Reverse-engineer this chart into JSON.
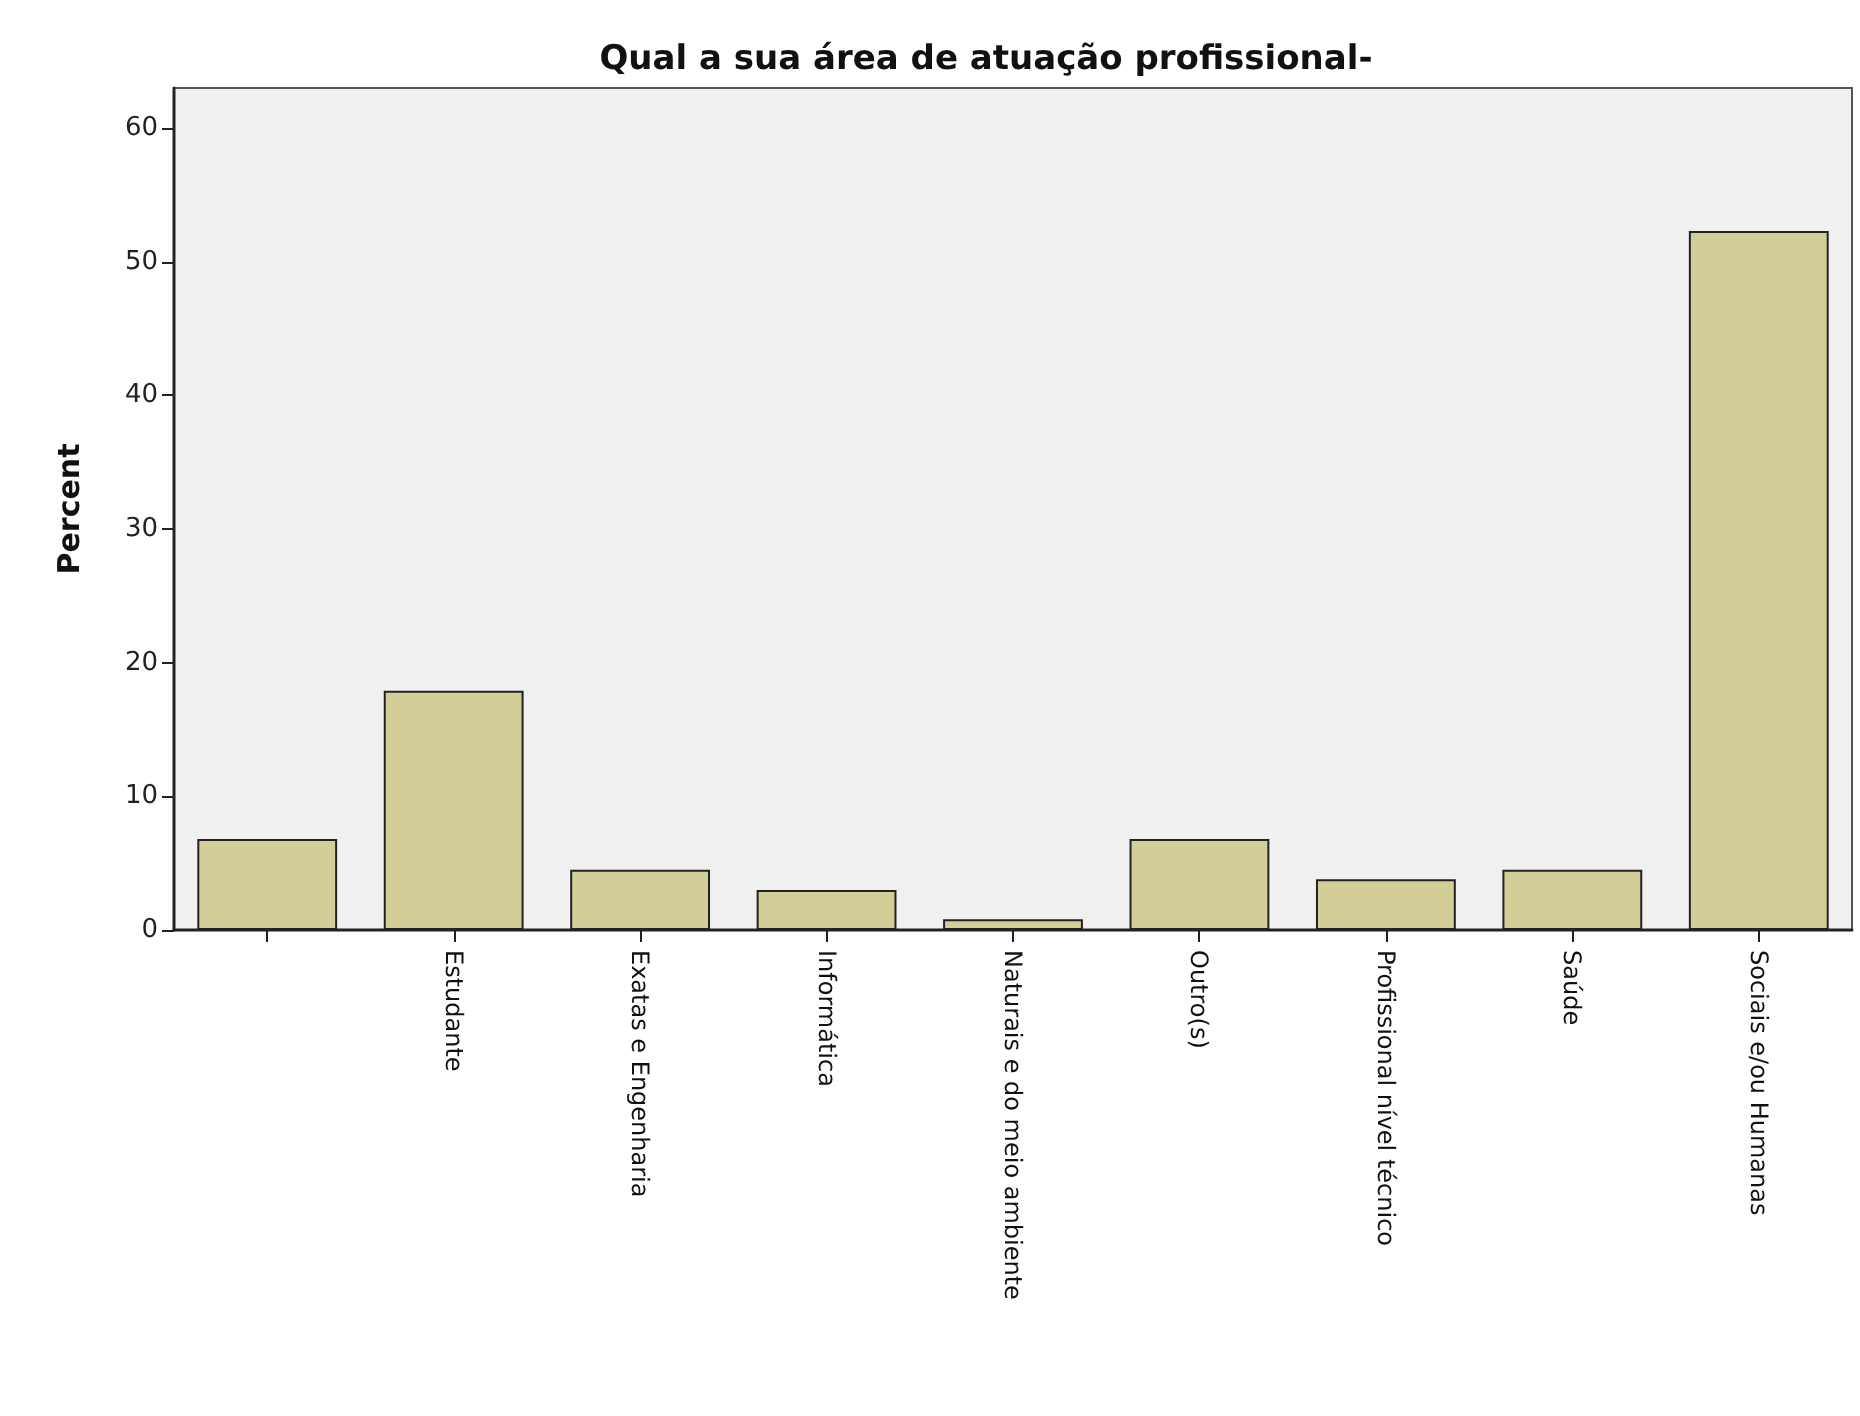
{
  "chart_data": {
    "type": "bar",
    "title": "Qual a sua área de atuação profissional-",
    "ylabel": "Percent",
    "categories": [
      null,
      "Estudante",
      "Exatas e Engenharia",
      "Informática",
      "Naturais e do meio ambiente",
      "Outro(s)",
      "Profissional nível técnico",
      "Saúde",
      "Sociais e/ou Humanas"
    ],
    "values": [
      6.8,
      17.9,
      4.5,
      3.0,
      0.8,
      6.8,
      3.8,
      4.5,
      52.3
    ],
    "color": "#d3ce97",
    "ylim": [
      0,
      63
    ],
    "yticks": [
      0,
      10,
      20,
      30,
      40,
      50,
      60
    ],
    "grid": false
  }
}
